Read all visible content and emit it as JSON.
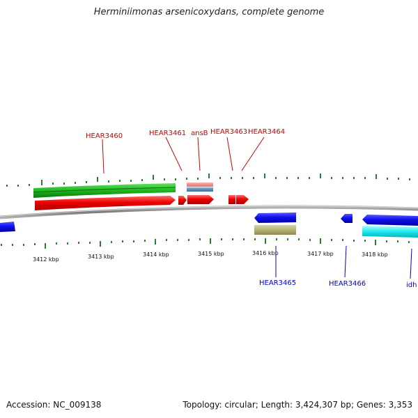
{
  "title": "Herminiimonas arsenicoxydans, complete genome",
  "footer": {
    "accession": "Accession: NC_009138",
    "topology": "Topology: circular; Length: 3,424,307 bp; Genes: 3,353"
  },
  "colors": {
    "forward_label": "#cc0000",
    "reverse_label": "#0000cc",
    "tick": "#2e7d2e",
    "backbone": "#888888"
  },
  "scale": {
    "ticks": [
      "3412 kbp",
      "3413 kbp",
      "3414 kbp",
      "3415 kbp",
      "3416 kbp",
      "3417 kbp",
      "3418 kbp"
    ]
  },
  "gene_labels": {
    "forward": [
      "HEAR3460",
      "HEAR3461",
      "ansB",
      "HEAR3463",
      "HEAR3464"
    ],
    "reverse": [
      "HEAR3465",
      "HEAR3466",
      "idh"
    ]
  }
}
